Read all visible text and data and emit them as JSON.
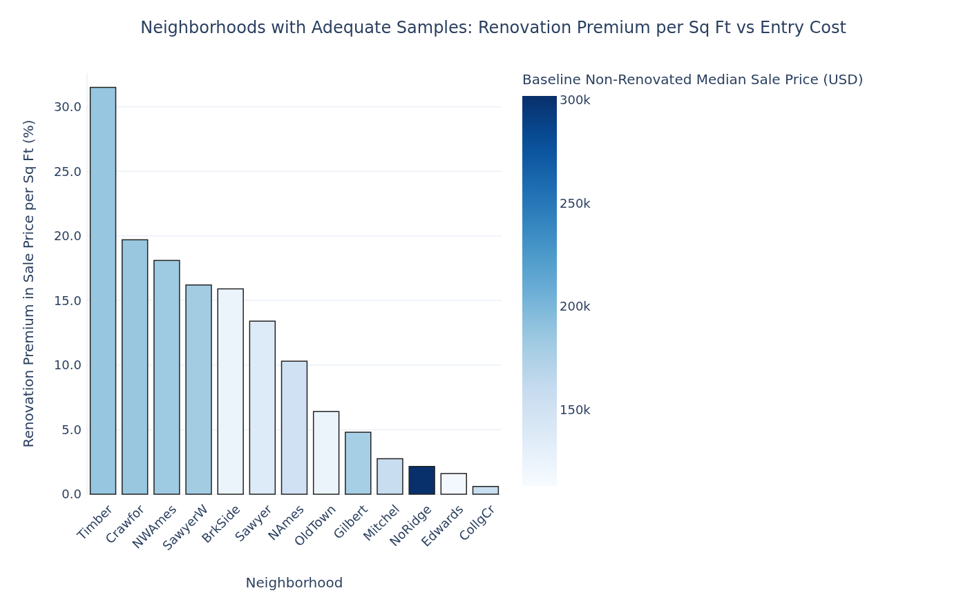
{
  "chart_data": {
    "type": "bar",
    "title": "Neighborhoods with Adequate Samples: Renovation Premium per Sq Ft vs Entry Cost",
    "xlabel": "Neighborhood",
    "ylabel": "Renovation Premium in Sale Price per Sq Ft (%)",
    "clabel": "Baseline Non-Renovated Median Sale Price (USD)",
    "categories": [
      "Timber",
      "Crawfor",
      "NWAmes",
      "SawyerW",
      "BrkSide",
      "Sawyer",
      "NAmes",
      "OldTown",
      "Gilbert",
      "Mitchel",
      "NoRidge",
      "Edwards",
      "CollgCr"
    ],
    "values": [
      31.5,
      19.7,
      18.1,
      16.2,
      15.9,
      13.4,
      10.3,
      6.4,
      4.8,
      2.75,
      2.15,
      1.6,
      0.6
    ],
    "cvalues": [
      187000,
      186000,
      183000,
      181000,
      124000,
      138000,
      151000,
      124000,
      179000,
      158000,
      302000,
      117000,
      158000
    ],
    "clim": [
      113000,
      302000
    ],
    "cticks": [
      {
        "value": 150000,
        "label": "150k"
      },
      {
        "value": 200000,
        "label": "200k"
      },
      {
        "value": 250000,
        "label": "250k"
      },
      {
        "value": 300000,
        "label": "300k"
      }
    ],
    "ylim": [
      0,
      32.6
    ],
    "yticks": [
      {
        "value": 0,
        "label": "0.0"
      },
      {
        "value": 5,
        "label": "5.0"
      },
      {
        "value": 10,
        "label": "10.0"
      },
      {
        "value": 15,
        "label": "15.0"
      },
      {
        "value": 20,
        "label": "20.0"
      },
      {
        "value": 25,
        "label": "25.0"
      },
      {
        "value": 30,
        "label": "30.0"
      }
    ],
    "grid": "y"
  }
}
